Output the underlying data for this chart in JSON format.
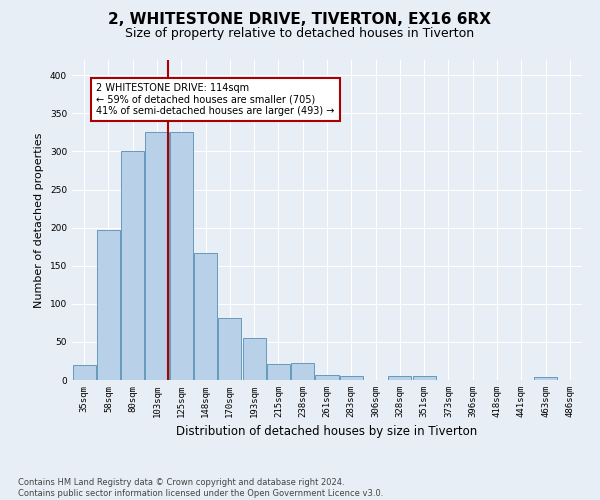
{
  "title1": "2, WHITESTONE DRIVE, TIVERTON, EX16 6RX",
  "title2": "Size of property relative to detached houses in Tiverton",
  "xlabel": "Distribution of detached houses by size in Tiverton",
  "ylabel": "Number of detached properties",
  "footnote1": "Contains HM Land Registry data © Crown copyright and database right 2024.",
  "footnote2": "Contains public sector information licensed under the Open Government Licence v3.0.",
  "bin_labels": [
    "35sqm",
    "58sqm",
    "80sqm",
    "103sqm",
    "125sqm",
    "148sqm",
    "170sqm",
    "193sqm",
    "215sqm",
    "238sqm",
    "261sqm",
    "283sqm",
    "306sqm",
    "328sqm",
    "351sqm",
    "373sqm",
    "396sqm",
    "418sqm",
    "441sqm",
    "463sqm",
    "486sqm"
  ],
  "bar_heights": [
    20,
    197,
    300,
    325,
    325,
    167,
    82,
    55,
    21,
    22,
    7,
    5,
    0,
    5,
    5,
    0,
    0,
    0,
    0,
    4,
    0
  ],
  "bar_color": "#b8d0e8",
  "bar_edge_color": "#6699bb",
  "vline_x": 3.45,
  "vline_color": "#aa0000",
  "annotation_text": "2 WHITESTONE DRIVE: 114sqm\n← 59% of detached houses are smaller (705)\n41% of semi-detached houses are larger (493) →",
  "annotation_box_color": "white",
  "annotation_box_edge": "#aa0000",
  "ylim": [
    0,
    420
  ],
  "yticks": [
    0,
    50,
    100,
    150,
    200,
    250,
    300,
    350,
    400
  ],
  "background_color": "#e8eef5",
  "grid_color": "white",
  "title1_fontsize": 11,
  "title2_fontsize": 9,
  "ylabel_fontsize": 8,
  "xlabel_fontsize": 8.5,
  "tick_fontsize": 6.5,
  "footnote_fontsize": 6
}
